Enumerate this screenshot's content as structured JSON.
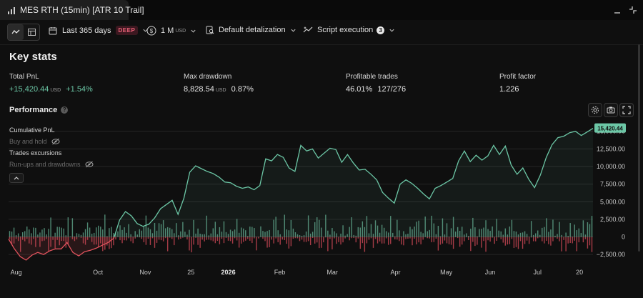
{
  "window": {
    "tab_title": "MES RTH (15min) [ATR 10 Trail]"
  },
  "toolbar": {
    "period_label": "Last 365 days",
    "period_badge": "DEEP",
    "capital_label": "1 M",
    "capital_unit": "USD",
    "detail_label": "Default detalization",
    "script_label": "Script execution",
    "script_count": "3"
  },
  "key_stats": {
    "title": "Key stats",
    "total_pnl": {
      "label": "Total PnL",
      "value": "+15,420.44",
      "unit": "USD",
      "pct": "+1.54%"
    },
    "max_drawdown": {
      "label": "Max drawdown",
      "value": "8,828.54",
      "unit": "USD",
      "pct": "0.87%"
    },
    "profitable_trades": {
      "label": "Profitable trades",
      "pct": "46.01%",
      "ratio": "127/276"
    },
    "profit_factor": {
      "label": "Profit factor",
      "value": "1.226"
    }
  },
  "performance": {
    "title": "Performance",
    "legend": {
      "cumulative": "Cumulative PnL",
      "buy_hold": "Buy and hold",
      "excursions": "Trades excursions",
      "runups": "Run-ups and drawdowns"
    },
    "last_value_label": "15,420.44"
  },
  "colors": {
    "positive": "#6cc7a6",
    "negative": "#e0525c",
    "bar_positive": "#5a9c84",
    "bar_negative": "#c24451"
  },
  "chart_data": {
    "type": "line",
    "title": "",
    "ylim": [
      -3500,
      16800
    ],
    "yticks": [
      -2500,
      0,
      2500,
      5000,
      7500,
      10000,
      12500,
      15000
    ],
    "ytick_labels": [
      "−2,500.00",
      "0",
      "2,500.00",
      "5,000.00",
      "7,500.00",
      "10,000.00",
      "12,500.00",
      "15,000.00"
    ],
    "x_range": [
      0,
      100
    ],
    "x_ticks": [
      {
        "x": 1.3,
        "label": "Aug",
        "bold": false
      },
      {
        "x": 15.3,
        "label": "Oct",
        "bold": false
      },
      {
        "x": 23.4,
        "label": "Nov",
        "bold": false
      },
      {
        "x": 31.2,
        "label": "25",
        "bold": false
      },
      {
        "x": 37.6,
        "label": "2026",
        "bold": true
      },
      {
        "x": 46.4,
        "label": "Feb",
        "bold": false
      },
      {
        "x": 55.4,
        "label": "Mar",
        "bold": false
      },
      {
        "x": 66.2,
        "label": "Apr",
        "bold": false
      },
      {
        "x": 74.9,
        "label": "May",
        "bold": false
      },
      {
        "x": 82.4,
        "label": "Jun",
        "bold": false
      },
      {
        "x": 90.5,
        "label": "Jul",
        "bold": false
      },
      {
        "x": 97.7,
        "label": "20",
        "bold": false
      }
    ],
    "series": [
      {
        "name": "Cumulative PnL",
        "points": [
          [
            0,
            -300
          ],
          [
            1,
            -1700
          ],
          [
            2,
            -2800
          ],
          [
            3,
            -3300
          ],
          [
            4,
            -2600
          ],
          [
            5,
            -2200
          ],
          [
            6,
            -2500
          ],
          [
            7,
            -2000
          ],
          [
            8,
            -1700
          ],
          [
            9,
            -1700
          ],
          [
            10,
            -800
          ],
          [
            11,
            -2200
          ],
          [
            12,
            -2700
          ],
          [
            13,
            -2100
          ],
          [
            14,
            -1900
          ],
          [
            15,
            -1600
          ],
          [
            16,
            -1200
          ],
          [
            17,
            -800
          ],
          [
            18,
            -200
          ],
          [
            19,
            2400
          ],
          [
            20,
            3600
          ],
          [
            21,
            3000
          ],
          [
            22,
            1900
          ],
          [
            23,
            1500
          ],
          [
            24,
            1800
          ],
          [
            25,
            2700
          ],
          [
            26,
            4000
          ],
          [
            27,
            4600
          ],
          [
            28,
            5200
          ],
          [
            29,
            3200
          ],
          [
            30,
            5500
          ],
          [
            31,
            9200
          ],
          [
            32,
            10100
          ],
          [
            33,
            9700
          ],
          [
            34,
            9300
          ],
          [
            35,
            9000
          ],
          [
            36,
            8500
          ],
          [
            37,
            7800
          ],
          [
            38,
            7700
          ],
          [
            39,
            7200
          ],
          [
            40,
            6900
          ],
          [
            41,
            7100
          ],
          [
            42,
            6700
          ],
          [
            43,
            7300
          ],
          [
            44,
            11100
          ],
          [
            45,
            10800
          ],
          [
            46,
            11700
          ],
          [
            47,
            11300
          ],
          [
            48,
            9800
          ],
          [
            49,
            9300
          ],
          [
            50,
            13000
          ],
          [
            51,
            12200
          ],
          [
            52,
            12500
          ],
          [
            53,
            11200
          ],
          [
            54,
            11900
          ],
          [
            55,
            12600
          ],
          [
            56,
            12400
          ],
          [
            57,
            10600
          ],
          [
            58,
            11700
          ],
          [
            59,
            10500
          ],
          [
            60,
            9500
          ],
          [
            61,
            9600
          ],
          [
            62,
            8900
          ],
          [
            63,
            8100
          ],
          [
            64,
            6300
          ],
          [
            65,
            5500
          ],
          [
            66,
            4800
          ],
          [
            67,
            7500
          ],
          [
            68,
            8100
          ],
          [
            69,
            7600
          ],
          [
            70,
            6900
          ],
          [
            71,
            6100
          ],
          [
            72,
            5400
          ],
          [
            73,
            6900
          ],
          [
            74,
            7300
          ],
          [
            75,
            7800
          ],
          [
            76,
            8300
          ],
          [
            77,
            10800
          ],
          [
            78,
            12200
          ],
          [
            79,
            10700
          ],
          [
            80,
            11600
          ],
          [
            81,
            10900
          ],
          [
            82,
            11500
          ],
          [
            83,
            13000
          ],
          [
            84,
            11700
          ],
          [
            85,
            12900
          ],
          [
            86,
            10200
          ],
          [
            87,
            8900
          ],
          [
            88,
            9800
          ],
          [
            89,
            8200
          ],
          [
            90,
            7000
          ],
          [
            91,
            8800
          ],
          [
            92,
            11300
          ],
          [
            93,
            13100
          ],
          [
            94,
            14100
          ],
          [
            95,
            14300
          ],
          [
            96,
            14800
          ],
          [
            97,
            15000
          ],
          [
            98,
            14400
          ],
          [
            99,
            14900
          ],
          [
            100,
            15420
          ]
        ]
      }
    ],
    "excursions_note": "Run-ups and drawdowns bars: green above zero, red below, one per trade"
  }
}
